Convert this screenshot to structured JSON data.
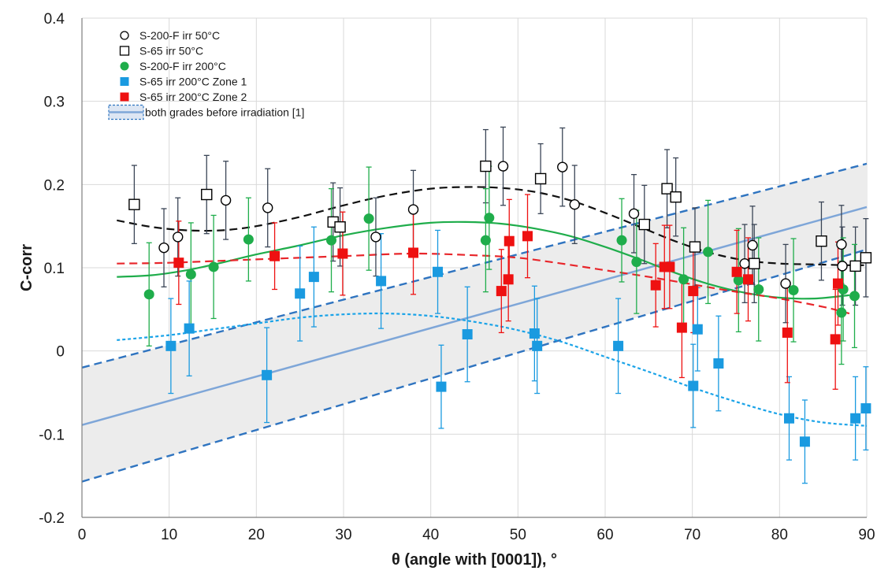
{
  "chart_data": {
    "type": "scatter",
    "title": "",
    "xlabel": "θ (angle with [0001]), °",
    "ylabel": "C-corr",
    "xlim": [
      0,
      90
    ],
    "ylim": [
      -0.2,
      0.4
    ],
    "x_ticks": [
      "0",
      "10",
      "20",
      "30",
      "40",
      "50",
      "60",
      "70",
      "80",
      "90"
    ],
    "y_ticks": [
      "-0.2",
      "-0.1",
      "0",
      "0.1",
      "0.2",
      "0.3",
      "0.4"
    ],
    "grid": true,
    "legend_position": "top-left",
    "series": [
      {
        "name": "S-200-F irr 50°C",
        "marker": "circle-open",
        "color": "#000000",
        "points": [
          {
            "x": 9.4,
            "y": 0.124,
            "err": 0.047
          },
          {
            "x": 11.0,
            "y": 0.137,
            "err": 0.047
          },
          {
            "x": 16.5,
            "y": 0.181,
            "err": 0.047
          },
          {
            "x": 21.3,
            "y": 0.172,
            "err": 0.047
          },
          {
            "x": 33.7,
            "y": 0.137,
            "err": 0.047
          },
          {
            "x": 38.0,
            "y": 0.17,
            "err": 0.047
          },
          {
            "x": 48.3,
            "y": 0.222,
            "err": 0.047
          },
          {
            "x": 55.1,
            "y": 0.221,
            "err": 0.047
          },
          {
            "x": 56.5,
            "y": 0.176,
            "err": 0.047
          },
          {
            "x": 63.3,
            "y": 0.165,
            "err": 0.047
          },
          {
            "x": 76.0,
            "y": 0.105,
            "err": 0.047
          },
          {
            "x": 76.9,
            "y": 0.127,
            "err": 0.047
          },
          {
            "x": 80.7,
            "y": 0.081,
            "err": 0.047
          },
          {
            "x": 87.1,
            "y": 0.128,
            "err": 0.047
          },
          {
            "x": 87.2,
            "y": 0.102,
            "err": 0.047
          }
        ]
      },
      {
        "name": "S-65 irr 50°C",
        "marker": "square-open",
        "color": "#000000",
        "points": [
          {
            "x": 6.0,
            "y": 0.176,
            "err": 0.047
          },
          {
            "x": 14.3,
            "y": 0.188,
            "err": 0.047
          },
          {
            "x": 28.8,
            "y": 0.155,
            "err": 0.047
          },
          {
            "x": 29.6,
            "y": 0.149,
            "err": 0.047
          },
          {
            "x": 46.3,
            "y": 0.222,
            "err": 0.044
          },
          {
            "x": 52.6,
            "y": 0.207,
            "err": 0.042
          },
          {
            "x": 64.5,
            "y": 0.152,
            "err": 0.047
          },
          {
            "x": 67.1,
            "y": 0.195,
            "err": 0.047
          },
          {
            "x": 68.1,
            "y": 0.185,
            "err": 0.047
          },
          {
            "x": 70.3,
            "y": 0.125,
            "err": 0.047
          },
          {
            "x": 77.1,
            "y": 0.105,
            "err": 0.047
          },
          {
            "x": 84.8,
            "y": 0.132,
            "err": 0.047
          },
          {
            "x": 88.7,
            "y": 0.102,
            "err": 0.047
          },
          {
            "x": 89.9,
            "y": 0.112,
            "err": 0.047
          }
        ]
      },
      {
        "name": "S-200-F irr 200°C",
        "marker": "circle-filled",
        "color": "#1fad4b",
        "points": [
          {
            "x": 7.7,
            "y": 0.068,
            "err": 0.062
          },
          {
            "x": 12.5,
            "y": 0.092,
            "err": 0.062
          },
          {
            "x": 15.1,
            "y": 0.101,
            "err": 0.062
          },
          {
            "x": 19.1,
            "y": 0.134,
            "err": 0.05
          },
          {
            "x": 28.6,
            "y": 0.133,
            "err": 0.062
          },
          {
            "x": 32.9,
            "y": 0.159,
            "err": 0.062
          },
          {
            "x": 46.3,
            "y": 0.133,
            "err": 0.062
          },
          {
            "x": 46.7,
            "y": 0.16,
            "err": 0.062
          },
          {
            "x": 61.9,
            "y": 0.133,
            "err": 0.05
          },
          {
            "x": 63.6,
            "y": 0.107,
            "err": 0.062
          },
          {
            "x": 69.0,
            "y": 0.086,
            "err": 0.062
          },
          {
            "x": 71.8,
            "y": 0.119,
            "err": 0.062
          },
          {
            "x": 75.3,
            "y": 0.085,
            "err": 0.062
          },
          {
            "x": 77.6,
            "y": 0.074,
            "err": 0.062
          },
          {
            "x": 81.6,
            "y": 0.073,
            "err": 0.062
          },
          {
            "x": 87.1,
            "y": 0.046,
            "err": 0.062
          },
          {
            "x": 87.3,
            "y": 0.074,
            "err": 0.062
          },
          {
            "x": 88.6,
            "y": 0.066,
            "err": 0.062
          }
        ]
      },
      {
        "name": "S-65 irr 200°C Zone 1",
        "marker": "square-filled",
        "color": "#1a9ae0",
        "points": [
          {
            "x": 10.2,
            "y": 0.006,
            "err": 0.057
          },
          {
            "x": 12.3,
            "y": 0.027,
            "err": 0.057
          },
          {
            "x": 21.2,
            "y": -0.029,
            "err": 0.057
          },
          {
            "x": 25.0,
            "y": 0.069,
            "err": 0.057
          },
          {
            "x": 26.6,
            "y": 0.089,
            "err": 0.06
          },
          {
            "x": 34.3,
            "y": 0.084,
            "err": 0.057
          },
          {
            "x": 40.8,
            "y": 0.095,
            "err": 0.05
          },
          {
            "x": 41.2,
            "y": -0.043,
            "err": 0.05
          },
          {
            "x": 44.2,
            "y": 0.02,
            "err": 0.057
          },
          {
            "x": 51.9,
            "y": 0.021,
            "err": 0.057
          },
          {
            "x": 52.2,
            "y": 0.006,
            "err": 0.057
          },
          {
            "x": 61.5,
            "y": 0.006,
            "err": 0.057
          },
          {
            "x": 70.1,
            "y": -0.042,
            "err": 0.05
          },
          {
            "x": 70.6,
            "y": 0.026,
            "err": 0.05
          },
          {
            "x": 73.0,
            "y": -0.015,
            "err": 0.057
          },
          {
            "x": 81.1,
            "y": -0.081,
            "err": 0.05
          },
          {
            "x": 82.9,
            "y": -0.109,
            "err": 0.05
          },
          {
            "x": 88.7,
            "y": -0.081,
            "err": 0.05
          },
          {
            "x": 89.9,
            "y": -0.069,
            "err": 0.05
          }
        ]
      },
      {
        "name": "S-65 irr 200°C Zone 2",
        "marker": "square-filled",
        "color": "#ee1111",
        "points": [
          {
            "x": 11.1,
            "y": 0.106,
            "err": 0.05
          },
          {
            "x": 22.1,
            "y": 0.114,
            "err": 0.04
          },
          {
            "x": 29.9,
            "y": 0.117,
            "err": 0.05
          },
          {
            "x": 38.0,
            "y": 0.118,
            "err": 0.05
          },
          {
            "x": 48.1,
            "y": 0.072,
            "err": 0.05
          },
          {
            "x": 48.9,
            "y": 0.086,
            "err": 0.05
          },
          {
            "x": 49.0,
            "y": 0.132,
            "err": 0.05
          },
          {
            "x": 51.1,
            "y": 0.138,
            "err": 0.05
          },
          {
            "x": 65.8,
            "y": 0.079,
            "err": 0.05
          },
          {
            "x": 66.8,
            "y": 0.101,
            "err": 0.05
          },
          {
            "x": 67.4,
            "y": 0.101,
            "err": 0.05
          },
          {
            "x": 68.8,
            "y": 0.028,
            "err": 0.06
          },
          {
            "x": 70.1,
            "y": 0.072,
            "err": 0.05
          },
          {
            "x": 75.1,
            "y": 0.095,
            "err": 0.05
          },
          {
            "x": 76.4,
            "y": 0.086,
            "err": 0.05
          },
          {
            "x": 80.9,
            "y": 0.022,
            "err": 0.06
          },
          {
            "x": 86.4,
            "y": 0.014,
            "err": 0.06
          },
          {
            "x": 86.7,
            "y": 0.081,
            "err": 0.05
          }
        ]
      }
    ],
    "fit_lines": [
      {
        "label": "S-200-F irr 50°C fit",
        "style": "dashed",
        "color": "#111111",
        "x": [
          4,
          8,
          12,
          16,
          20,
          25,
          30,
          35,
          40,
          44,
          48,
          52,
          56,
          60,
          64,
          68,
          72,
          76,
          80,
          84,
          88,
          90
        ],
        "y": [
          0.157,
          0.149,
          0.145,
          0.145,
          0.15,
          0.161,
          0.175,
          0.187,
          0.195,
          0.197,
          0.196,
          0.191,
          0.181,
          0.166,
          0.149,
          0.132,
          0.118,
          0.109,
          0.105,
          0.104,
          0.103,
          0.103
        ]
      },
      {
        "label": "S-200-F irr 200°C fit",
        "style": "solid",
        "color": "#1fad4b",
        "x": [
          4,
          8,
          12,
          16,
          20,
          25,
          30,
          35,
          40,
          44,
          48,
          52,
          56,
          60,
          64,
          68,
          72,
          76,
          80,
          84,
          88
        ],
        "y": [
          0.089,
          0.091,
          0.097,
          0.106,
          0.116,
          0.127,
          0.139,
          0.148,
          0.154,
          0.155,
          0.153,
          0.147,
          0.138,
          0.125,
          0.11,
          0.094,
          0.08,
          0.07,
          0.064,
          0.063,
          0.067
        ]
      },
      {
        "label": "S-65 irr 200°C Zone 2 fit",
        "style": "dashed",
        "color": "#e8262b",
        "x": [
          4,
          10,
          20,
          30,
          38,
          45,
          50,
          55,
          60,
          65,
          70,
          75,
          80,
          85,
          88
        ],
        "y": [
          0.105,
          0.106,
          0.11,
          0.114,
          0.117,
          0.115,
          0.112,
          0.105,
          0.097,
          0.089,
          0.08,
          0.071,
          0.063,
          0.053,
          0.045
        ]
      },
      {
        "label": "S-65 irr 200°C Zone 1 fit",
        "style": "dotted",
        "color": "#1aa3e8",
        "x": [
          4,
          10,
          15,
          20,
          25,
          30,
          35,
          40,
          45,
          50,
          55,
          60,
          65,
          70,
          75,
          80,
          85,
          90
        ],
        "y": [
          0.013,
          0.019,
          0.026,
          0.033,
          0.04,
          0.044,
          0.045,
          0.042,
          0.035,
          0.025,
          0.011,
          -0.007,
          -0.025,
          -0.044,
          -0.061,
          -0.076,
          -0.086,
          -0.09
        ]
      }
    ],
    "band": {
      "label": "both grades before irradiation [1]",
      "center": {
        "x": [
          0,
          90
        ],
        "y": [
          -0.089,
          0.173
        ]
      },
      "upper": {
        "x": [
          0,
          90
        ],
        "y": [
          -0.02,
          0.225
        ]
      },
      "lower": {
        "x": [
          0,
          90
        ],
        "y": [
          -0.157,
          0.122
        ]
      },
      "line_color": "#7ea6d8",
      "bound_color": "#2f74c0",
      "fill_color": "#ececec"
    }
  }
}
